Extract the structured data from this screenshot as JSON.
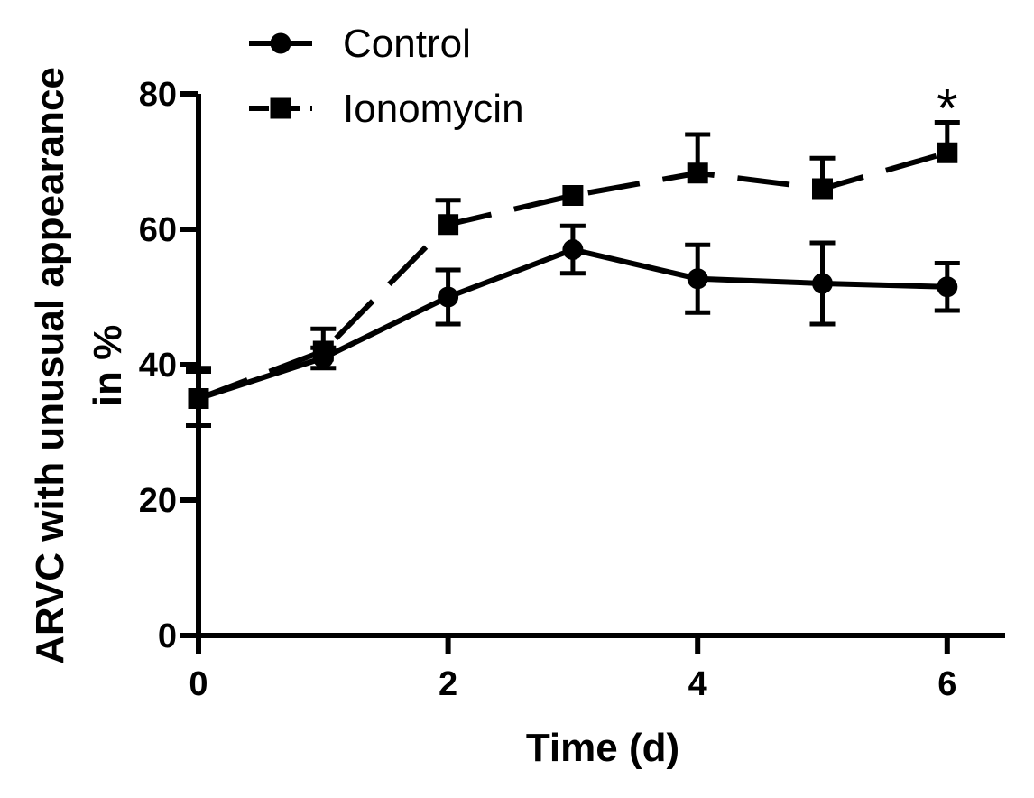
{
  "chart_data": {
    "type": "line",
    "title": "",
    "xlabel": "Time (d)",
    "ylabel_line1": "ARVC with unusual appearance",
    "ylabel_line2": "in %",
    "x": [
      0,
      1,
      2,
      3,
      4,
      5,
      6
    ],
    "xticks": [
      0,
      2,
      4,
      6
    ],
    "xlim": [
      0,
      6.5
    ],
    "yticks": [
      0,
      20,
      40,
      60,
      80
    ],
    "ylim": [
      0,
      80
    ],
    "legend_placement": "top-left",
    "series": [
      {
        "name": "Control",
        "marker": "circle",
        "line_style": "solid",
        "values": [
          35,
          41,
          50,
          57,
          52.7,
          52,
          51.5
        ],
        "error_up": [
          4,
          1.5,
          4,
          3.5,
          5,
          6,
          3.5
        ],
        "error_down": [
          4,
          1.5,
          4,
          3.5,
          5,
          6,
          3.5
        ]
      },
      {
        "name": "Ionomycin",
        "marker": "square",
        "line_style": "dashed",
        "values": [
          35,
          42,
          60.7,
          65,
          68.3,
          66,
          71.3
        ],
        "error_up": [
          4.5,
          3.3,
          3.6,
          0,
          5.7,
          4.5,
          4.5
        ],
        "error_down": [
          0,
          0,
          0,
          0,
          0,
          0,
          0
        ]
      }
    ],
    "annotations": [
      {
        "text": "*",
        "x": 6,
        "y": 80.5
      }
    ]
  }
}
